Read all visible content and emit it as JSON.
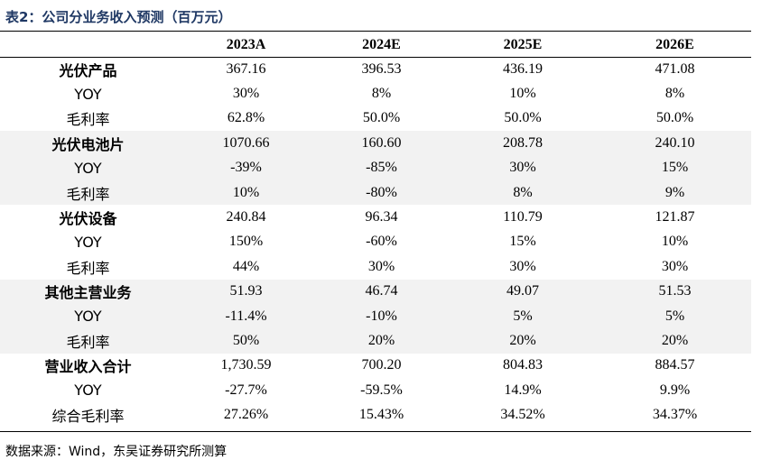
{
  "title": "表2：公司分业务收入预测（百万元）",
  "header": {
    "corner": "",
    "years": [
      "2023A",
      "2024E",
      "2025E",
      "2026E"
    ]
  },
  "rows": [
    {
      "label": "光伏产品",
      "bold": true,
      "shade": false,
      "values": [
        "367.16",
        "396.53",
        "436.19",
        "471.08"
      ]
    },
    {
      "label": "YOY",
      "bold": false,
      "shade": false,
      "values": [
        "30%",
        "8%",
        "10%",
        "8%"
      ]
    },
    {
      "label": "毛利率",
      "bold": false,
      "shade": false,
      "values": [
        "62.8%",
        "50.0%",
        "50.0%",
        "50.0%"
      ]
    },
    {
      "label": "光伏电池片",
      "bold": true,
      "shade": true,
      "values": [
        "1070.66",
        "160.60",
        "208.78",
        "240.10"
      ]
    },
    {
      "label": "YOY",
      "bold": false,
      "shade": true,
      "values": [
        "-39%",
        "-85%",
        "30%",
        "15%"
      ]
    },
    {
      "label": "毛利率",
      "bold": false,
      "shade": true,
      "values": [
        "10%",
        "-80%",
        "8%",
        "9%"
      ]
    },
    {
      "label": "光伏设备",
      "bold": true,
      "shade": false,
      "values": [
        "240.84",
        "96.34",
        "110.79",
        "121.87"
      ]
    },
    {
      "label": "YOY",
      "bold": false,
      "shade": false,
      "values": [
        "150%",
        "-60%",
        "15%",
        "10%"
      ]
    },
    {
      "label": "毛利率",
      "bold": false,
      "shade": false,
      "values": [
        "44%",
        "30%",
        "30%",
        "30%"
      ]
    },
    {
      "label": "其他主营业务",
      "bold": true,
      "shade": true,
      "values": [
        "51.93",
        "46.74",
        "49.07",
        "51.53"
      ]
    },
    {
      "label": "YOY",
      "bold": false,
      "shade": true,
      "values": [
        "-11.4%",
        "-10%",
        "5%",
        "5%"
      ]
    },
    {
      "label": "毛利率",
      "bold": false,
      "shade": true,
      "values": [
        "50%",
        "20%",
        "20%",
        "20%"
      ]
    },
    {
      "label": "营业收入合计",
      "bold": true,
      "shade": false,
      "values": [
        "1,730.59",
        "700.20",
        "804.83",
        "884.57"
      ]
    },
    {
      "label": "YOY",
      "bold": false,
      "shade": false,
      "values": [
        "-27.7%",
        "-59.5%",
        "14.9%",
        "9.9%"
      ]
    },
    {
      "label": "综合毛利率",
      "bold": false,
      "shade": false,
      "values": [
        "27.26%",
        "15.43%",
        "34.52%",
        "34.37%"
      ]
    }
  ],
  "source": "数据来源：Wind，东吴证券研究所测算"
}
